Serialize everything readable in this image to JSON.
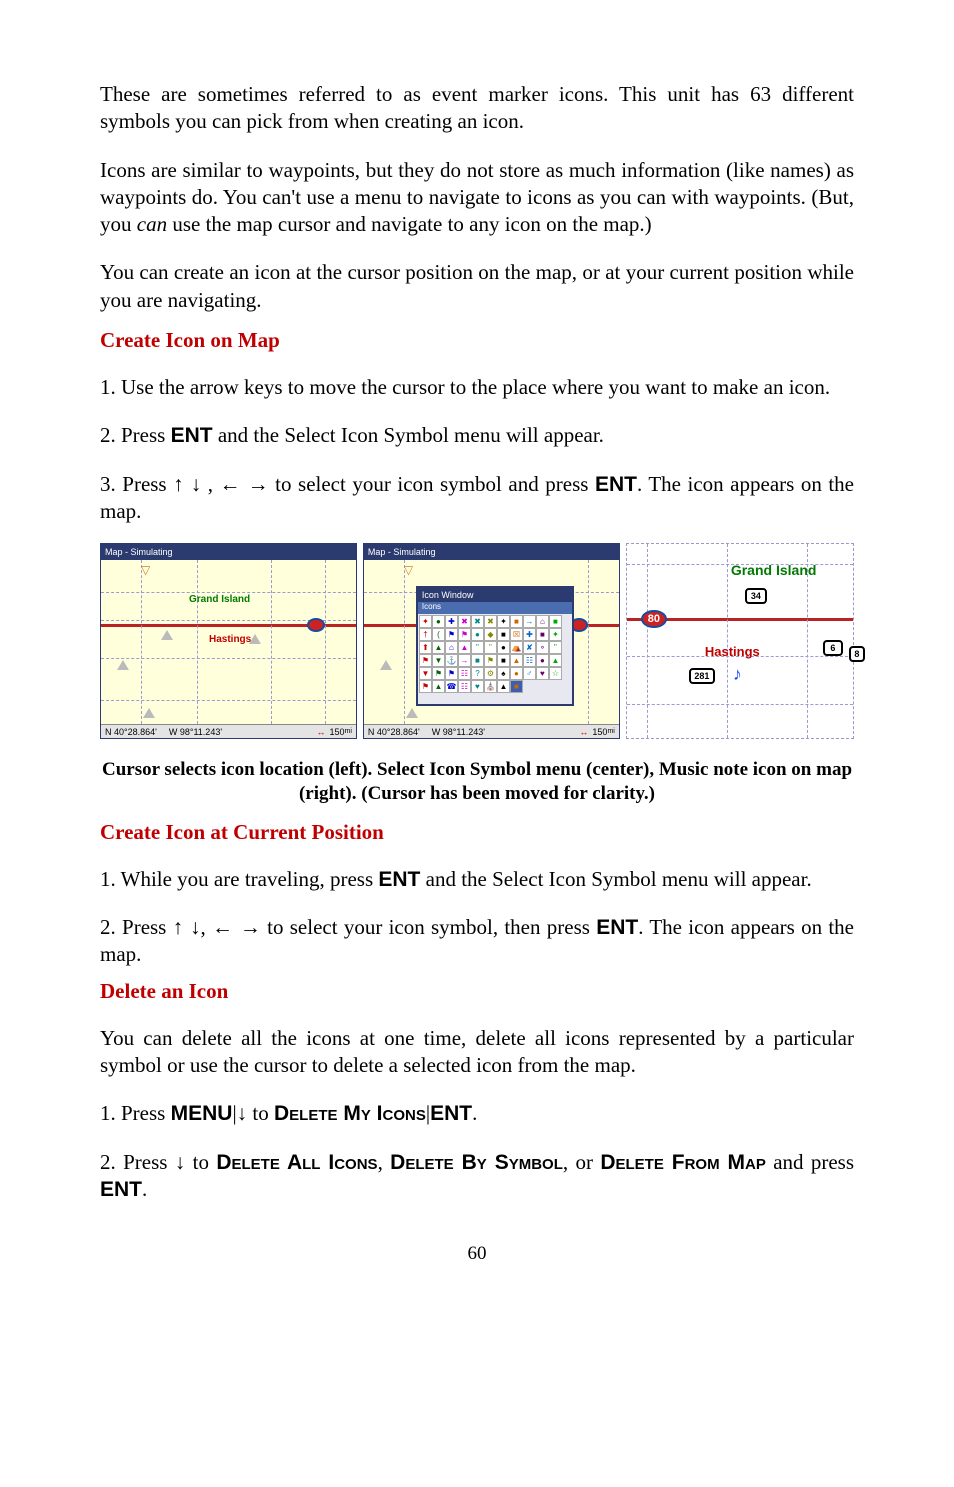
{
  "paras": {
    "p1": "These are sometimes referred to as event marker icons. This unit has 63 different symbols you can pick from when creating an icon.",
    "p2a": "Icons are similar to waypoints, but they do not store as much information (like names) as waypoints do. You can't use a menu to navigate to icons as you can with waypoints. (But, you ",
    "p2_can": "can",
    "p2b": " use the map cursor and navigate to any icon on the map.)",
    "p3": "You can create an icon at the cursor position on the map, or at your current position while you are navigating."
  },
  "h1": "Create Icon on Map",
  "s1": {
    "step1": "1. Use the arrow keys to move the cursor to the place where you want to make an icon.",
    "step2a": "2. Press ",
    "ent": "ENT",
    "step2b": " and the Select Icon Symbol menu will appear.",
    "step3a": "3. Press ",
    "arrows_ud": "↑ ↓",
    "sep": " , ",
    "arrows_lr": "← →",
    "step3b": " to select your icon symbol and press ",
    "step3c": ". The icon appears on the map."
  },
  "fig": {
    "titlebar": "Map - Simulating",
    "coords_n": "N  40°28.864'",
    "coords_w": "W  98°11.243'",
    "zoom": "150",
    "zoom_unit": "mi",
    "icon_window": "Icon Window",
    "icons_label": "Icons",
    "grand_island": "Grand Island",
    "hastings": "Hastings",
    "sign80": "80",
    "sign281": "281",
    "sign6": "6",
    "sign8": "8",
    "sign34": "34",
    "note": "♪",
    "arrows": "↔"
  },
  "caption": "Cursor selects icon location (left). Select Icon Symbol menu (center), Music note icon on map (right). (Cursor has been moved for clarity.)",
  "h2": "Create Icon at Current Position",
  "s2": {
    "step1a": "1. While you are traveling, press ",
    "step1b": " and the Select Icon Symbol menu will appear.",
    "step2a": "2. Press ",
    "arrows_ud": "↑ ↓",
    "sep": ", ",
    "arrows_lr": "← →",
    "step2b": " to select your icon symbol, then press ",
    "step2c": ". The icon appears on the map."
  },
  "h3": "Delete an Icon",
  "s3": {
    "p": "You can delete all the icons at one time, delete all icons represented by a particular symbol or use the cursor to delete a selected icon from the map.",
    "step1a": "1. Press ",
    "menu": "MENU",
    "pipe": "|",
    "down": "↓",
    "to": " to ",
    "dmi": "Delete My Icons",
    "ent": "ENT",
    "dot": ".",
    "step2a": "2. Press ",
    "step2b": " to ",
    "dai": "Delete All Icons",
    "comma": ", ",
    "dbs": "Delete By Symbol",
    "or": ", or ",
    "dfm": "Delete From Map",
    "step2c": " and press "
  },
  "pagenum": "60",
  "palette_cells": [
    "✦",
    "●",
    "✚",
    "✖",
    "✖",
    "✖",
    "✦",
    "■",
    "→",
    "⌂",
    "■",
    "†",
    "(",
    "⚑",
    "⚑",
    "●",
    "◆",
    "■",
    "☒",
    "✚",
    "■",
    "✦",
    "⬆",
    "▲",
    "⌂",
    "▲",
    "\"",
    "\"",
    "●",
    "⛺",
    "✘",
    "⚬",
    "\"",
    "⚑",
    "▼",
    "⚓",
    "→",
    "■",
    "⚑",
    "■",
    "▲",
    "☷",
    "●",
    "▲",
    "▼",
    "⚑",
    "⚑",
    "☷",
    "?",
    "⚙",
    "♠",
    "●",
    "♂",
    "♥",
    "☆",
    "⚑",
    "▲",
    "☎",
    "☷",
    "♥",
    "⛪",
    "▲",
    "■"
  ]
}
